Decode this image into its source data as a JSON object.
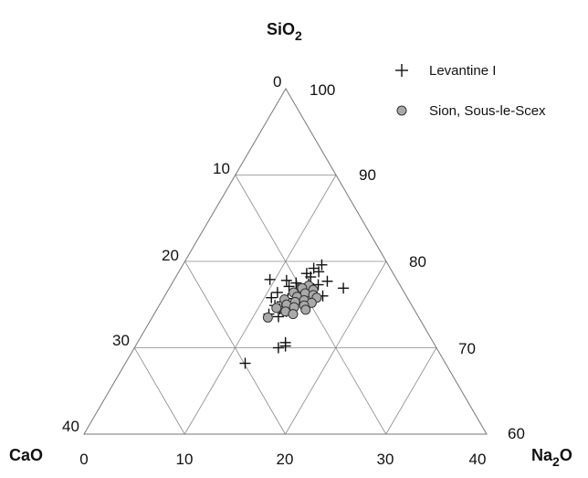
{
  "chart_data": {
    "type": "scatter",
    "subtype": "ternary",
    "components": {
      "top": {
        "base": "SiO",
        "sub": "2"
      },
      "left": {
        "base": "CaO",
        "sub": ""
      },
      "right": {
        "base": "Na",
        "sub": "2",
        "tail": "O"
      }
    },
    "ranges": {
      "SiO2": [
        60,
        100
      ],
      "CaO": [
        0,
        40
      ],
      "Na2O": [
        0,
        40
      ]
    },
    "ticks": {
      "na2o_axis": [
        "0",
        "10",
        "20",
        "30",
        "40"
      ],
      "cao_axis": [
        "0",
        "10",
        "20",
        "30",
        "40"
      ],
      "sio2_axis": [
        "100",
        "90",
        "80",
        "70",
        "60"
      ]
    },
    "grid": true,
    "legend": {
      "position": "top-right",
      "entries": [
        {
          "label": "Levantine I",
          "marker": "plus"
        },
        {
          "label": "Sion, Sous-le-Scex",
          "marker": "circle"
        }
      ]
    },
    "series": [
      {
        "name": "Levantine I",
        "marker": "plus",
        "color": "#111111",
        "points": [
          {
            "sio2": 79.6,
            "na2o": 13.8
          },
          {
            "sio2": 79.2,
            "na2o": 13.2
          },
          {
            "sio2": 78.8,
            "na2o": 13.9
          },
          {
            "sio2": 78.6,
            "na2o": 12.8
          },
          {
            "sio2": 78.2,
            "na2o": 13.4
          },
          {
            "sio2": 77.9,
            "na2o": 9.5
          },
          {
            "sio2": 77.8,
            "na2o": 11.2
          },
          {
            "sio2": 77.7,
            "na2o": 15.3
          },
          {
            "sio2": 77.5,
            "na2o": 12.3
          },
          {
            "sio2": 77.4,
            "na2o": 13.6
          },
          {
            "sio2": 77.3,
            "na2o": 14.6
          },
          {
            "sio2": 77.1,
            "na2o": 11.8
          },
          {
            "sio2": 76.9,
            "na2o": 17.3
          },
          {
            "sio2": 76.8,
            "na2o": 12.8
          },
          {
            "sio2": 76.6,
            "na2o": 14.1
          },
          {
            "sio2": 76.4,
            "na2o": 11.0
          },
          {
            "sio2": 76.2,
            "na2o": 13.1
          },
          {
            "sio2": 76.0,
            "na2o": 15.7
          },
          {
            "sio2": 75.8,
            "na2o": 10.7
          },
          {
            "sio2": 75.7,
            "na2o": 12.4
          },
          {
            "sio2": 75.5,
            "na2o": 14.3
          },
          {
            "sio2": 75.3,
            "na2o": 12.0
          },
          {
            "sio2": 75.1,
            "na2o": 13.5
          },
          {
            "sio2": 74.9,
            "na2o": 11.5
          },
          {
            "sio2": 74.7,
            "na2o": 14.6
          },
          {
            "sio2": 74.5,
            "na2o": 12.2
          },
          {
            "sio2": 74.2,
            "na2o": 13.0
          },
          {
            "sio2": 73.9,
            "na2o": 11.4
          },
          {
            "sio2": 73.6,
            "na2o": 12.5
          },
          {
            "sio2": 70.6,
            "na2o": 14.7
          },
          {
            "sio2": 70.2,
            "na2o": 14.9
          },
          {
            "sio2": 70.0,
            "na2o": 14.3
          },
          {
            "sio2": 68.2,
            "na2o": 11.9
          }
        ]
      },
      {
        "name": "Sion, Sous-le-Scex",
        "marker": "circle",
        "color": "#a9a9a9",
        "points": [
          {
            "sio2": 77.2,
            "na2o": 13.7
          },
          {
            "sio2": 76.9,
            "na2o": 13.2
          },
          {
            "sio2": 76.7,
            "na2o": 14.4
          },
          {
            "sio2": 76.4,
            "na2o": 12.6
          },
          {
            "sio2": 76.3,
            "na2o": 13.8
          },
          {
            "sio2": 76.1,
            "na2o": 14.7
          },
          {
            "sio2": 75.9,
            "na2o": 13.2
          },
          {
            "sio2": 75.8,
            "na2o": 15.2
          },
          {
            "sio2": 75.6,
            "na2o": 12.1
          },
          {
            "sio2": 75.5,
            "na2o": 14.1
          },
          {
            "sio2": 75.3,
            "na2o": 13.3
          },
          {
            "sio2": 75.2,
            "na2o": 15.0
          },
          {
            "sio2": 75.0,
            "na2o": 12.6
          },
          {
            "sio2": 74.9,
            "na2o": 14.4
          },
          {
            "sio2": 74.7,
            "na2o": 13.5
          },
          {
            "sio2": 74.6,
            "na2o": 11.8
          },
          {
            "sio2": 74.4,
            "na2o": 14.8
          },
          {
            "sio2": 74.2,
            "na2o": 12.9
          },
          {
            "sio2": 73.9,
            "na2o": 13.8
          },
          {
            "sio2": 73.5,
            "na2o": 11.5
          }
        ]
      }
    ]
  }
}
